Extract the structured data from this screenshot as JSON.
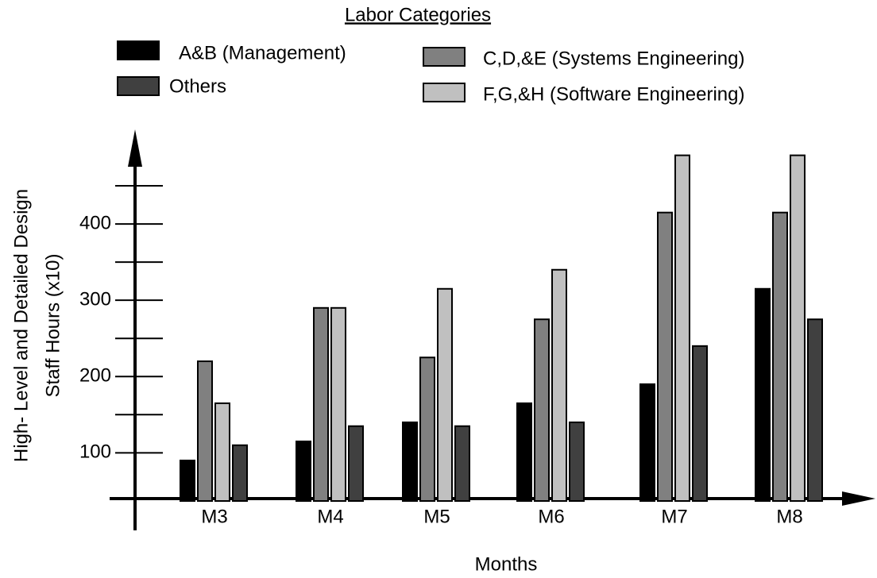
{
  "chart_data": {
    "type": "bar",
    "legend_title": "Labor Categories",
    "x_label": "Months",
    "y_label": [
      "High- Level and Detailed Design",
      "Staff Hours (x10)"
    ],
    "categories": [
      "M3",
      "M4",
      "M5",
      "M6",
      "M7",
      "M8"
    ],
    "series": [
      {
        "name": "A&B (Management)",
        "color": "#000000",
        "values": [
          90,
          115,
          140,
          165,
          190,
          315
        ]
      },
      {
        "name": "C,D,&E (Systems Engineering)",
        "color": "#808080",
        "values": [
          220,
          290,
          225,
          275,
          415,
          415
        ]
      },
      {
        "name": "F,G,&H (Software Engineering)",
        "color": "#c0c0c0",
        "values": [
          165,
          290,
          315,
          340,
          490,
          490
        ]
      },
      {
        "name": "Others",
        "color": "#404040",
        "values": [
          110,
          135,
          135,
          140,
          240,
          275
        ]
      }
    ],
    "ylim": [
      40,
      525
    ],
    "yticks": [
      100,
      200,
      300,
      400
    ],
    "yminorticks": [
      150,
      250,
      350,
      450
    ]
  }
}
